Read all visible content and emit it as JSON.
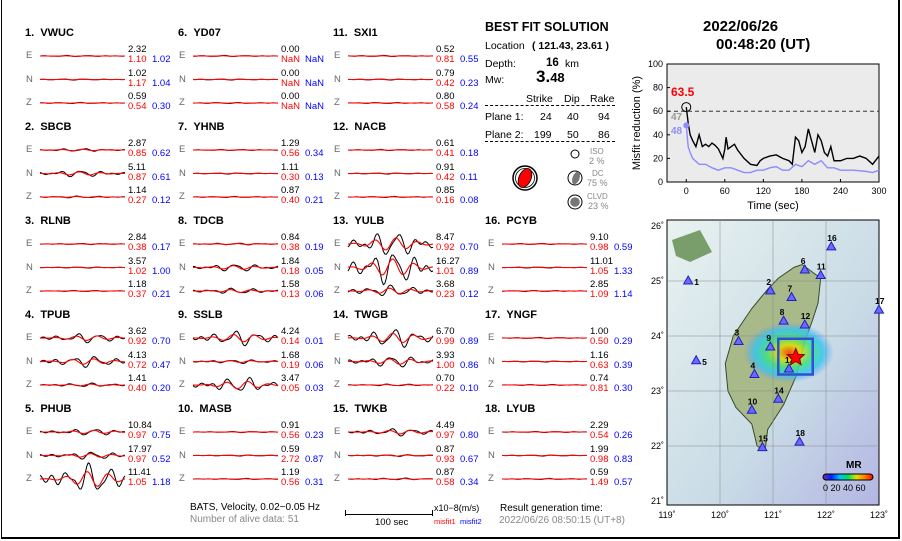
{
  "stations": [
    {
      "num": "1.",
      "name": "VWUC",
      "comps": [
        {
          "c": "E",
          "amp": "2.32",
          "m1": "1.10",
          "m2": "1.02"
        },
        {
          "c": "N",
          "amp": "1.02",
          "m1": "1.17",
          "m2": "1.04"
        },
        {
          "c": "Z",
          "amp": "0.59",
          "m1": "0.54",
          "m2": "0.30"
        }
      ]
    },
    {
      "num": "2.",
      "name": "SBCB",
      "comps": [
        {
          "c": "E",
          "amp": "2.87",
          "m1": "0.85",
          "m2": "0.62"
        },
        {
          "c": "N",
          "amp": "5.11",
          "m1": "0.87",
          "m2": "0.61"
        },
        {
          "c": "Z",
          "amp": "1.14",
          "m1": "0.27",
          "m2": "0.12"
        }
      ]
    },
    {
      "num": "3.",
      "name": "RLNB",
      "comps": [
        {
          "c": "E",
          "amp": "2.84",
          "m1": "0.38",
          "m2": "0.17"
        },
        {
          "c": "N",
          "amp": "3.57",
          "m1": "1.02",
          "m2": "1.00"
        },
        {
          "c": "Z",
          "amp": "1.18",
          "m1": "0.37",
          "m2": "0.21"
        }
      ]
    },
    {
      "num": "4.",
      "name": "TPUB",
      "comps": [
        {
          "c": "E",
          "amp": "3.62",
          "m1": "0.92",
          "m2": "0.70"
        },
        {
          "c": "N",
          "amp": "4.13",
          "m1": "0.72",
          "m2": "0.47"
        },
        {
          "c": "Z",
          "amp": "1.41",
          "m1": "0.40",
          "m2": "0.20"
        }
      ]
    },
    {
      "num": "5.",
      "name": "PHUB",
      "comps": [
        {
          "c": "E",
          "amp": "10.84",
          "m1": "0.97",
          "m2": "0.75"
        },
        {
          "c": "N",
          "amp": "17.97",
          "m1": "0.97",
          "m2": "0.52"
        },
        {
          "c": "Z",
          "amp": "11.41",
          "m1": "1.05",
          "m2": "1.18"
        }
      ]
    },
    {
      "num": "6.",
      "name": "YD07",
      "comps": [
        {
          "c": "E",
          "amp": "0.00",
          "m1": "NaN",
          "m2": "NaN"
        },
        {
          "c": "N",
          "amp": "0.00",
          "m1": "NaN",
          "m2": "NaN"
        },
        {
          "c": "Z",
          "amp": "0.00",
          "m1": "NaN",
          "m2": "NaN"
        }
      ]
    },
    {
      "num": "7.",
      "name": "YHNB",
      "comps": [
        {
          "c": "E",
          "amp": "1.29",
          "m1": "0.56",
          "m2": "0.34"
        },
        {
          "c": "N",
          "amp": "1.11",
          "m1": "0.30",
          "m2": "0.13"
        },
        {
          "c": "Z",
          "amp": "0.87",
          "m1": "0.40",
          "m2": "0.21"
        }
      ]
    },
    {
      "num": "8.",
      "name": "TDCB",
      "comps": [
        {
          "c": "E",
          "amp": "0.84",
          "m1": "0.38",
          "m2": "0.19"
        },
        {
          "c": "N",
          "amp": "1.84",
          "m1": "0.18",
          "m2": "0.05"
        },
        {
          "c": "Z",
          "amp": "1.58",
          "m1": "0.13",
          "m2": "0.06"
        }
      ]
    },
    {
      "num": "9.",
      "name": "SSLB",
      "comps": [
        {
          "c": "E",
          "amp": "4.24",
          "m1": "0.14",
          "m2": "0.01"
        },
        {
          "c": "N",
          "amp": "1.68",
          "m1": "0.19",
          "m2": "0.06"
        },
        {
          "c": "Z",
          "amp": "3.47",
          "m1": "0.05",
          "m2": "0.03"
        }
      ]
    },
    {
      "num": "10.",
      "name": "MASB",
      "comps": [
        {
          "c": "E",
          "amp": "0.91",
          "m1": "0.56",
          "m2": "0.23"
        },
        {
          "c": "N",
          "amp": "0.59",
          "m1": "2.72",
          "m2": "0.87"
        },
        {
          "c": "Z",
          "amp": "1.19",
          "m1": "0.56",
          "m2": "0.31"
        }
      ]
    },
    {
      "num": "11.",
      "name": "SXI1",
      "comps": [
        {
          "c": "E",
          "amp": "0.52",
          "m1": "0.81",
          "m2": "0.55"
        },
        {
          "c": "N",
          "amp": "0.79",
          "m1": "0.42",
          "m2": "0.23"
        },
        {
          "c": "Z",
          "amp": "0.80",
          "m1": "0.58",
          "m2": "0.24"
        }
      ]
    },
    {
      "num": "12.",
      "name": "NACB",
      "comps": [
        {
          "c": "E",
          "amp": "0.61",
          "m1": "0.41",
          "m2": "0.18"
        },
        {
          "c": "N",
          "amp": "0.91",
          "m1": "0.42",
          "m2": "0.11"
        },
        {
          "c": "Z",
          "amp": "0.85",
          "m1": "0.16",
          "m2": "0.08"
        }
      ]
    },
    {
      "num": "13.",
      "name": "YULB",
      "comps": [
        {
          "c": "E",
          "amp": "8.47",
          "m1": "0.92",
          "m2": "0.70"
        },
        {
          "c": "N",
          "amp": "16.27",
          "m1": "1.01",
          "m2": "0.89"
        },
        {
          "c": "Z",
          "amp": "3.68",
          "m1": "0.23",
          "m2": "0.12"
        }
      ]
    },
    {
      "num": "14.",
      "name": "TWGB",
      "comps": [
        {
          "c": "E",
          "amp": "6.70",
          "m1": "0.99",
          "m2": "0.89"
        },
        {
          "c": "N",
          "amp": "3.93",
          "m1": "1.00",
          "m2": "0.86"
        },
        {
          "c": "Z",
          "amp": "0.70",
          "m1": "0.22",
          "m2": "0.10"
        }
      ]
    },
    {
      "num": "15.",
      "name": "TWKB",
      "comps": [
        {
          "c": "E",
          "amp": "4.49",
          "m1": "0.97",
          "m2": "0.80"
        },
        {
          "c": "N",
          "amp": "0.87",
          "m1": "0.93",
          "m2": "0.67"
        },
        {
          "c": "Z",
          "amp": "0.87",
          "m1": "0.58",
          "m2": "0.34"
        }
      ]
    },
    {
      "num": "16.",
      "name": "PCYB",
      "comps": [
        {
          "c": "E",
          "amp": "9.10",
          "m1": "0.98",
          "m2": "0.59"
        },
        {
          "c": "N",
          "amp": "11.01",
          "m1": "1.05",
          "m2": "1.33"
        },
        {
          "c": "Z",
          "amp": "2.85",
          "m1": "1.09",
          "m2": "1.14"
        }
      ]
    },
    {
      "num": "17.",
      "name": "YNGF",
      "comps": [
        {
          "c": "E",
          "amp": "1.00",
          "m1": "0.50",
          "m2": "0.29"
        },
        {
          "c": "N",
          "amp": "1.16",
          "m1": "0.63",
          "m2": "0.39"
        },
        {
          "c": "Z",
          "amp": "0.74",
          "m1": "0.81",
          "m2": "0.30"
        }
      ]
    },
    {
      "num": "18.",
      "name": "LYUB",
      "comps": [
        {
          "c": "E",
          "amp": "2.29",
          "m1": "0.54",
          "m2": "0.26"
        },
        {
          "c": "N",
          "amp": "1.99",
          "m1": "0.98",
          "m2": "0.83"
        },
        {
          "c": "Z",
          "amp": "0.59",
          "m1": "1.49",
          "m2": "0.57"
        }
      ]
    }
  ],
  "solution": {
    "title": "BEST FIT SOLUTION",
    "location_label": "Location",
    "location": "( 121.43,  23.61 )",
    "depth_label": "Depth:",
    "depth": "16",
    "depth_unit": "km",
    "mw_label": "Mw:",
    "mw_int": "3.",
    "mw_dec": "48",
    "headers": [
      "Strike",
      "Dip",
      "Rake"
    ],
    "planes": [
      {
        "label": "Plane 1:",
        "strike": "24",
        "dip": "40",
        "rake": "94"
      },
      {
        "label": "Plane 2:",
        "strike": "199",
        "dip": "50",
        "rake": "86"
      }
    ],
    "iso_label": "ISO",
    "iso": "2 %",
    "dc_label": "DC",
    "dc": "75 %",
    "clvd_label": "CLVD",
    "clvd": "23 %",
    "beachball_color": "#ff0000"
  },
  "footer": {
    "data_info": "BATS, Velocity, 0.02−0.05 Hz",
    "alive": "Number of alive data: 51",
    "scale": "100 sec",
    "unit": "x10−8(m/s)",
    "misfit1": "misfit1",
    "misfit2": "misfit2",
    "gen_label": "Result generation time:",
    "gen_time": "2022/06/26 08:50:15 (UT+8)"
  },
  "event": {
    "date": "2022/06/26",
    "time": "00:48:20  (UT)"
  },
  "chart_data": {
    "type": "line",
    "xlabel": "Time (sec)",
    "ylabel": "Misfit reduction (%)",
    "xlim": [
      -30,
      300
    ],
    "ylim": [
      0,
      100
    ],
    "xticks": [
      0,
      60,
      120,
      180,
      240,
      300
    ],
    "yticks": [
      0,
      20,
      40,
      60,
      80,
      100
    ],
    "reference_line": 60,
    "annotations": {
      "best": "63.5",
      "gray": "47",
      "blue": "48"
    },
    "series": [
      {
        "color": "#000000",
        "x": [
          0,
          3,
          6,
          10,
          15,
          20,
          25,
          30,
          35,
          40,
          45,
          50,
          57,
          60,
          62,
          65,
          70,
          75,
          80,
          90,
          100,
          110,
          115,
          120,
          130,
          140,
          150,
          160,
          165,
          170,
          175,
          180,
          185,
          190,
          195,
          200,
          205,
          210,
          215,
          220,
          225,
          230,
          240,
          250,
          260,
          270,
          280,
          290,
          300
        ],
        "y": [
          63.5,
          50,
          40,
          35,
          30,
          40,
          30,
          32,
          30,
          33,
          31,
          28,
          20,
          28,
          38,
          28,
          30,
          32,
          27,
          20,
          15,
          14,
          18,
          20,
          22,
          23,
          20,
          18,
          15,
          38,
          35,
          25,
          30,
          45,
          35,
          25,
          40,
          35,
          25,
          22,
          30,
          18,
          18,
          20,
          20,
          22,
          20,
          15,
          22
        ]
      },
      {
        "color": "#8c8cff",
        "x": [
          0,
          3,
          6,
          10,
          20,
          30,
          40,
          50,
          60,
          70,
          80,
          90,
          100,
          110,
          120,
          130,
          140,
          150,
          160,
          170,
          180,
          190,
          200,
          210,
          220,
          230,
          240,
          260,
          280,
          290,
          300
        ],
        "y": [
          48,
          30,
          25,
          20,
          15,
          15,
          12,
          10,
          12,
          12,
          10,
          8,
          8,
          10,
          10,
          12,
          13,
          10,
          10,
          15,
          13,
          18,
          15,
          18,
          12,
          12,
          10,
          10,
          9,
          8,
          10
        ]
      }
    ]
  },
  "map": {
    "lon_ticks": [
      "119˚",
      "120˚",
      "121˚",
      "122˚",
      "123˚"
    ],
    "lat_ticks": [
      "21˚",
      "22˚",
      "23˚",
      "24˚",
      "25˚",
      "26˚"
    ],
    "colorbar_title": "MR",
    "colorbar_labels": "0 20 40 60",
    "epicenter": {
      "lon": 121.43,
      "lat": 23.61
    },
    "stations": [
      {
        "n": "1",
        "lon": 119.4,
        "lat": 25.0
      },
      {
        "n": "2",
        "lon": 120.95,
        "lat": 24.82
      },
      {
        "n": "3",
        "lon": 120.35,
        "lat": 23.9
      },
      {
        "n": "4",
        "lon": 120.65,
        "lat": 23.3
      },
      {
        "n": "5",
        "lon": 119.55,
        "lat": 23.55
      },
      {
        "n": "6",
        "lon": 121.6,
        "lat": 25.2
      },
      {
        "n": "7",
        "lon": 121.35,
        "lat": 24.7
      },
      {
        "n": "8",
        "lon": 121.2,
        "lat": 24.27
      },
      {
        "n": "9",
        "lon": 120.95,
        "lat": 23.8
      },
      {
        "n": "10",
        "lon": 120.6,
        "lat": 22.65
      },
      {
        "n": "11",
        "lon": 121.9,
        "lat": 25.1
      },
      {
        "n": "12",
        "lon": 121.6,
        "lat": 24.2
      },
      {
        "n": "13",
        "lon": 121.3,
        "lat": 23.4
      },
      {
        "n": "14",
        "lon": 121.1,
        "lat": 22.85
      },
      {
        "n": "15",
        "lon": 120.8,
        "lat": 21.97
      },
      {
        "n": "16",
        "lon": 122.1,
        "lat": 25.62
      },
      {
        "n": "17",
        "lon": 123.0,
        "lat": 24.47
      },
      {
        "n": "18",
        "lon": 121.5,
        "lat": 22.07
      }
    ]
  }
}
